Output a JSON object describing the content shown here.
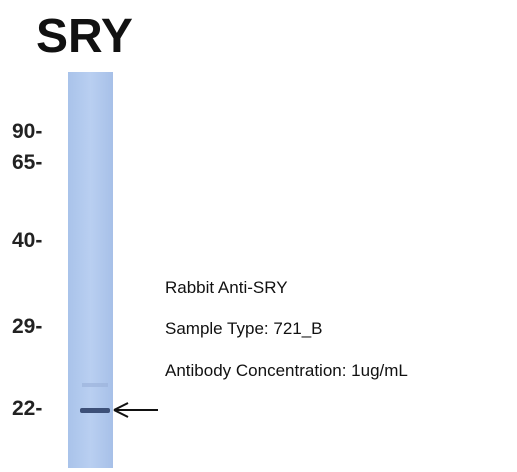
{
  "title": "SRY",
  "markers": [
    "90-",
    "65-",
    "40-",
    "29-",
    "22-"
  ],
  "annotations": [
    "Rabbit Anti-SRY",
    "Sample Type: 721_B",
    "Antibody Concentration: 1ug/mL"
  ]
}
